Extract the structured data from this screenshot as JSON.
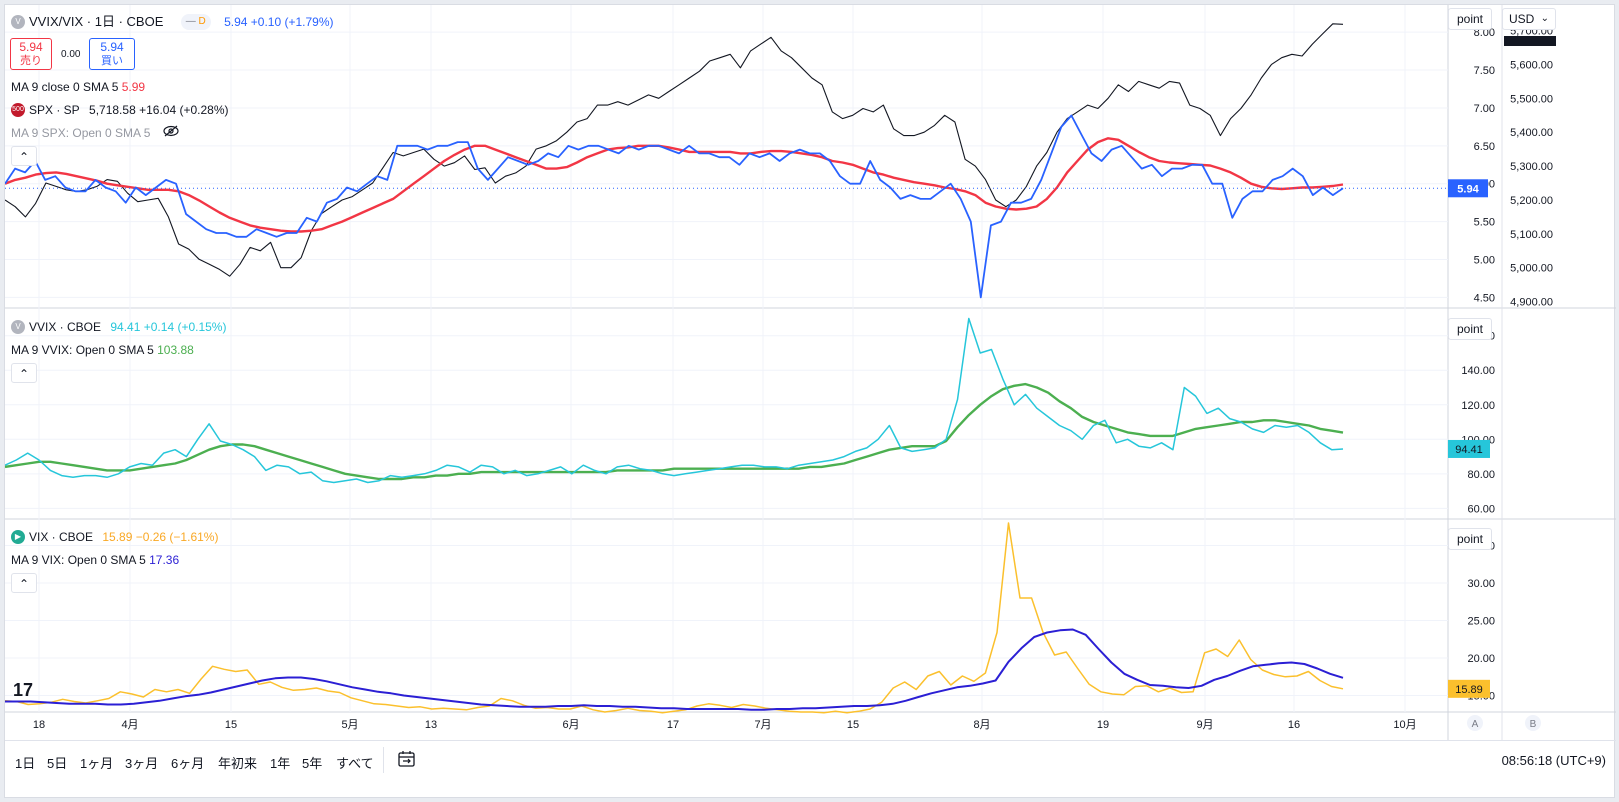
{
  "colors": {
    "ratio_line": "#2962ff",
    "ratio_ma": "#f23645",
    "spx_line": "#131722",
    "vvix_line": "#26c6da",
    "vvix_ma": "#4caf50",
    "vix_line": "#fbc02d",
    "vix_ma": "#2b1fd4",
    "sell": "#f23645",
    "buy": "#2962ff"
  },
  "pane1": {
    "title": "VVIX/VIX · 1日 · CBOE",
    "badge": "D",
    "price": "5.94",
    "change": "+0.10 (+1.79%)",
    "sell_price": "5.94",
    "sell_label": "売り",
    "spread": "0.00",
    "buy_price": "5.94",
    "buy_label": "買い",
    "ma_label": "MA 9 close 0 SMA 5",
    "ma_value": "5.99",
    "spx_icon": "500",
    "spx_label": "SPX · SP",
    "spx_price": "5,718.58",
    "spx_change": "+16.04 (+0.28%)",
    "spx_ma_label": "MA 9 SPX: Open 0 SMA 5",
    "last_label": "5.94",
    "scale_btn": "point",
    "currency": "USD",
    "left_ticks": [
      "8.00",
      "7.50",
      "7.00",
      "6.50",
      "6.00",
      "5.50",
      "5.00",
      "4.50"
    ],
    "right_ticks": [
      "5,700.00",
      "5,600.00",
      "5,500.00",
      "5,400.00",
      "5,300.00",
      "5,200.00",
      "5,100.00",
      "5,000.00",
      "4,900.00"
    ]
  },
  "pane2": {
    "title": "VVIX · CBOE",
    "price": "94.41",
    "change": "+0.14 (+0.15%)",
    "ma_label": "MA 9 VVIX: Open 0 SMA 5",
    "ma_value": "103.88",
    "last_label": "94.41",
    "scale_btn": "point",
    "ticks": [
      "160.00",
      "140.00",
      "120.00",
      "100.00",
      "80.00",
      "60.00"
    ]
  },
  "pane3": {
    "title": "VIX · CBOE",
    "price": "15.89",
    "change": "−0.26 (−1.61%)",
    "ma_label": "MA 9 VIX: Open 0 SMA 5",
    "ma_value": "17.36",
    "last_label": "15.89",
    "scale_btn": "point",
    "ticks": [
      "35.00",
      "30.00",
      "25.00",
      "20.00",
      "15.00"
    ]
  },
  "time_axis": [
    "18",
    "4月",
    "15",
    "5月",
    "13",
    "6月",
    "17",
    "7月",
    "15",
    "8月",
    "19",
    "9月",
    "16",
    "10月"
  ],
  "axis_corner": [
    "A",
    "B"
  ],
  "bottom": {
    "ranges": [
      "1日",
      "5日",
      "1ヶ月",
      "3ヶ月",
      "6ヶ月",
      "年初来",
      "1年",
      "5年",
      "すべて"
    ],
    "clock": "08:56:18 (UTC+9)",
    "logo": "17"
  },
  "chart_data": [
    {
      "type": "line",
      "pane": "VVIX/VIX",
      "x_range": [
        "18",
        "10月"
      ],
      "ylim": [
        4.4,
        8.2
      ],
      "series": [
        {
          "name": "VVIX/VIX",
          "values": [
            6.0,
            6.2,
            6.15,
            6.3,
            6.05,
            6.1,
            5.95,
            5.9,
            5.9,
            6.05,
            5.95,
            5.9,
            5.75,
            5.95,
            5.85,
            5.95,
            6.05,
            6.0,
            5.6,
            5.5,
            5.4,
            5.35,
            5.35,
            5.3,
            5.3,
            5.4,
            5.35,
            5.3,
            5.35,
            5.35,
            5.55,
            5.5,
            5.75,
            5.8,
            5.95,
            5.9,
            6.0,
            6.1,
            6.05,
            6.5,
            6.5,
            6.5,
            6.45,
            6.5,
            6.5,
            6.55,
            6.55,
            6.2,
            6.05,
            6.2,
            6.35,
            6.3,
            6.25,
            6.3,
            6.4,
            6.35,
            6.5,
            6.45,
            6.5,
            6.5,
            6.45,
            6.4,
            6.5,
            6.45,
            6.5,
            6.5,
            6.45,
            6.4,
            6.5,
            6.4,
            6.4,
            6.35,
            6.35,
            6.25,
            6.4,
            6.35,
            6.4,
            6.3,
            6.4,
            6.45,
            6.4,
            6.4,
            6.3,
            6.1,
            6.0,
            6.0,
            6.3,
            6.05,
            5.95,
            5.8,
            5.85,
            5.8,
            5.8,
            5.9,
            6.0,
            5.8,
            5.5,
            4.5,
            5.45,
            5.5,
            5.75,
            5.75,
            5.8,
            6.05,
            6.4,
            6.75,
            6.9,
            6.65,
            6.4,
            6.3,
            6.45,
            6.5,
            6.35,
            6.2,
            6.25,
            6.1,
            6.2,
            6.2,
            6.25,
            6.25,
            6.0,
            6.0,
            5.55,
            5.8,
            5.9,
            5.9,
            6.05,
            6.1,
            6.2,
            6.1,
            5.85,
            5.95,
            5.85,
            5.94
          ]
        },
        {
          "name": "MA 9 close 0 SMA 5",
          "values": [
            6.0,
            6.05,
            6.08,
            6.12,
            6.14,
            6.15,
            6.13,
            6.1,
            6.07,
            6.04,
            6.0,
            5.98,
            5.96,
            5.94,
            5.92,
            5.92,
            5.92,
            5.9,
            5.85,
            5.78,
            5.7,
            5.62,
            5.55,
            5.5,
            5.45,
            5.42,
            5.4,
            5.38,
            5.37,
            5.37,
            5.38,
            5.4,
            5.45,
            5.5,
            5.56,
            5.62,
            5.68,
            5.74,
            5.8,
            5.9,
            6.0,
            6.1,
            6.2,
            6.3,
            6.38,
            6.45,
            6.5,
            6.5,
            6.45,
            6.4,
            6.35,
            6.3,
            6.25,
            6.2,
            6.2,
            6.22,
            6.28,
            6.35,
            6.4,
            6.45,
            6.47,
            6.48,
            6.5,
            6.5,
            6.5,
            6.48,
            6.45,
            6.42,
            6.42,
            6.42,
            6.42,
            6.42,
            6.4,
            6.4,
            6.42,
            6.43,
            6.43,
            6.42,
            6.4,
            6.38,
            6.35,
            6.3,
            6.28,
            6.25,
            6.2,
            6.15,
            6.12,
            6.08,
            6.05,
            6.02,
            6.0,
            5.98,
            5.95,
            5.93,
            5.9,
            5.85,
            5.75,
            5.7,
            5.67,
            5.66,
            5.67,
            5.7,
            5.8,
            5.95,
            6.15,
            6.3,
            6.45,
            6.55,
            6.6,
            6.58,
            6.5,
            6.42,
            6.35,
            6.3,
            6.28,
            6.27,
            6.26,
            6.25,
            6.24,
            6.2,
            6.15,
            6.08,
            6.0,
            5.96,
            5.94,
            5.93,
            5.94,
            5.95,
            5.95,
            5.96,
            5.97,
            5.99
          ]
        },
        {
          "name": "SPX · SP",
          "values": [
            5200,
            5180,
            5150,
            5190,
            5250,
            5240,
            5230,
            5225,
            5230,
            5240,
            5260,
            5255,
            5220,
            5195,
            5200,
            5205,
            5150,
            5070,
            5055,
            5025,
            5010,
            4995,
            4975,
            5010,
            5060,
            5050,
            5075,
            5000,
            5000,
            5030,
            5110,
            5160,
            5180,
            5200,
            5210,
            5230,
            5250,
            5295,
            5340,
            5330,
            5340,
            5350,
            5320,
            5300,
            5310,
            5330,
            5290,
            5295,
            5250,
            5270,
            5280,
            5300,
            5350,
            5360,
            5375,
            5400,
            5430,
            5440,
            5480,
            5480,
            5490,
            5480,
            5495,
            5510,
            5500,
            5520,
            5540,
            5560,
            5580,
            5610,
            5620,
            5630,
            5590,
            5640,
            5660,
            5680,
            5640,
            5620,
            5590,
            5560,
            5540,
            5460,
            5440,
            5450,
            5470,
            5460,
            5480,
            5410,
            5390,
            5390,
            5400,
            5420,
            5450,
            5430,
            5320,
            5300,
            5260,
            5200,
            5180,
            5200,
            5240,
            5300,
            5340,
            5400,
            5440,
            5460,
            5480,
            5470,
            5500,
            5540,
            5520,
            5550,
            5540,
            5530,
            5550,
            5545,
            5480,
            5470,
            5450,
            5390,
            5440,
            5470,
            5510,
            5560,
            5600,
            5620,
            5630,
            5625,
            5660,
            5690,
            5720,
            5718.58
          ]
        }
      ]
    },
    {
      "type": "line",
      "pane": "VVIX",
      "ylim": [
        55,
        172
      ],
      "series": [
        {
          "name": "VVIX · CBOE",
          "values": [
            85,
            88,
            92,
            88,
            82,
            79,
            78,
            79,
            79,
            78,
            80,
            84,
            86,
            85,
            92,
            94,
            90,
            100,
            109,
            99,
            97,
            94,
            90,
            82,
            85,
            84,
            80,
            81,
            76,
            75,
            76,
            77,
            75,
            76,
            79,
            78,
            79,
            80,
            82,
            85,
            84,
            81,
            85,
            84,
            80,
            82,
            79,
            80,
            82,
            84,
            80,
            85,
            82,
            80,
            84,
            85,
            83,
            82,
            80,
            79,
            80,
            81,
            82,
            83,
            84,
            85,
            85,
            84,
            84,
            83,
            85,
            86,
            87,
            88,
            90,
            93,
            95,
            100,
            108,
            95,
            93,
            94,
            95,
            100,
            123,
            170,
            150,
            152,
            135,
            120,
            126,
            118,
            113,
            108,
            105,
            100,
            108,
            111,
            98,
            100,
            96,
            95,
            98,
            94,
            130,
            125,
            115,
            118,
            112,
            110,
            106,
            104,
            108,
            107,
            108,
            104,
            98,
            94,
            94.41
          ]
        },
        {
          "name": "MA 9 VVIX: Open 0 SMA 5",
          "values": [
            84,
            85,
            86,
            87,
            87,
            86,
            85,
            84,
            83,
            82,
            82,
            82,
            83,
            84,
            85,
            86,
            88,
            91,
            94,
            96,
            97,
            97,
            96,
            94,
            92,
            90,
            88,
            86,
            84,
            82,
            80,
            79,
            78,
            77,
            77,
            77,
            78,
            78,
            79,
            79,
            80,
            80,
            81,
            81,
            81,
            81,
            81,
            81,
            81,
            81,
            81,
            81,
            81,
            81,
            82,
            82,
            82,
            82,
            82,
            83,
            83,
            83,
            83,
            83,
            83,
            83,
            83,
            83,
            83,
            83,
            83,
            84,
            84,
            85,
            86,
            88,
            90,
            92,
            94,
            95,
            96,
            96,
            96,
            99,
            107,
            114,
            120,
            125,
            129,
            131,
            132,
            130,
            127,
            122,
            118,
            113,
            110,
            108,
            106,
            104,
            103,
            102,
            102,
            102,
            104,
            106,
            107,
            108,
            109,
            110,
            110,
            111,
            111,
            110,
            109,
            108,
            106,
            105,
            103.88
          ]
        }
      ]
    },
    {
      "type": "line",
      "pane": "VIX",
      "ylim": [
        13.2,
        38
      ],
      "series": [
        {
          "name": "VIX · CBOE",
          "values": [
            14.3,
            14.2,
            13.8,
            13.9,
            14.1,
            14.5,
            14.2,
            14.0,
            14.3,
            14.6,
            15.5,
            15.2,
            14.8,
            15.8,
            15.5,
            15.8,
            15.3,
            17.2,
            18.9,
            18.5,
            18.2,
            18.4,
            16.5,
            16.8,
            16.1,
            15.7,
            15.8,
            16.0,
            15.6,
            15.4,
            14.7,
            14.3,
            13.9,
            13.8,
            13.6,
            13.4,
            13.5,
            13.2,
            13.3,
            13.2,
            13.1,
            13.4,
            13.6,
            14.6,
            14.3,
            13.7,
            13.3,
            13.4,
            13.2,
            13.2,
            13.6,
            13.1,
            12.8,
            13.0,
            13.3,
            13.0,
            12.9,
            12.7,
            12.9,
            13.1,
            13.6,
            13.9,
            13.7,
            13.4,
            13.8,
            13.6,
            13.3,
            13.1,
            12.9,
            12.8,
            12.8,
            12.7,
            12.9,
            12.7,
            12.9,
            13.2,
            14.1,
            16.0,
            16.8,
            15.8,
            17.6,
            18.2,
            16.4,
            17.6,
            16.9,
            18.0,
            23.4,
            38.0,
            28.0,
            28.0,
            23.4,
            20.4,
            20.8,
            18.6,
            16.5,
            15.5,
            15.2,
            15.1,
            16.2,
            16.3,
            15.5,
            16.0,
            15.4,
            15.5,
            20.7,
            21.2,
            20.2,
            22.4,
            19.8,
            18.4,
            17.8,
            17.5,
            17.6,
            18.2,
            17.0,
            16.2,
            15.89
          ]
        },
        {
          "name": "MA 9 VIX: Open 0 SMA 5",
          "values": [
            14.2,
            14.2,
            14.2,
            14.1,
            14.0,
            13.9,
            13.9,
            13.9,
            13.8,
            13.8,
            13.9,
            14.1,
            14.3,
            14.6,
            14.9,
            15.1,
            15.4,
            15.8,
            16.2,
            16.6,
            17.0,
            17.3,
            17.4,
            17.4,
            17.2,
            16.9,
            16.5,
            16.1,
            15.8,
            15.5,
            15.3,
            15.0,
            14.8,
            14.6,
            14.4,
            14.2,
            14.0,
            13.8,
            13.7,
            13.6,
            13.5,
            13.5,
            13.5,
            13.6,
            13.6,
            13.7,
            13.6,
            13.6,
            13.5,
            13.5,
            13.4,
            13.3,
            13.3,
            13.2,
            13.2,
            13.2,
            13.2,
            13.2,
            13.1,
            13.1,
            13.2,
            13.2,
            13.3,
            13.3,
            13.4,
            13.5,
            13.6,
            13.6,
            13.7,
            13.9,
            14.3,
            14.8,
            15.3,
            15.7,
            16.1,
            16.3,
            16.6,
            17.0,
            19.5,
            21.3,
            22.8,
            23.4,
            23.7,
            23.8,
            23.1,
            21.2,
            19.4,
            17.9,
            17.1,
            16.4,
            16.3,
            16.1,
            16.0,
            16.3,
            17.1,
            17.6,
            18.3,
            18.9,
            19.1,
            19.3,
            19.4,
            19.2,
            18.6,
            17.9,
            17.36
          ]
        }
      ]
    }
  ]
}
